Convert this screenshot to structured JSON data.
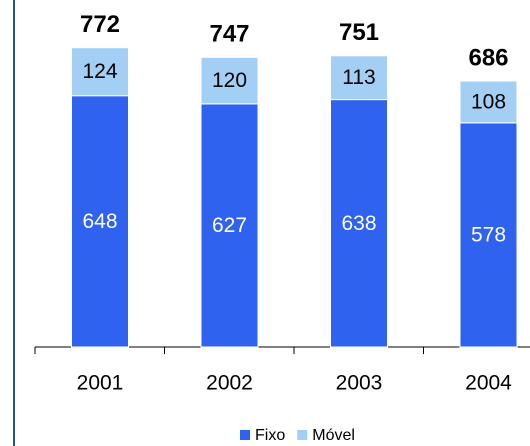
{
  "chart_data": {
    "type": "stacked_bar",
    "categories": [
      "2001",
      "2002",
      "2003",
      "2004"
    ],
    "series": [
      {
        "name": "Fixo",
        "color": "#2f62ee",
        "values": [
          648,
          627,
          638,
          578
        ]
      },
      {
        "name": "Móvel",
        "color": "#a3cff5",
        "values": [
          124,
          120,
          113,
          108
        ]
      }
    ],
    "totals": [
      772,
      747,
      751,
      686
    ],
    "ylim": [
      0,
      900
    ],
    "legend": "bottom"
  }
}
